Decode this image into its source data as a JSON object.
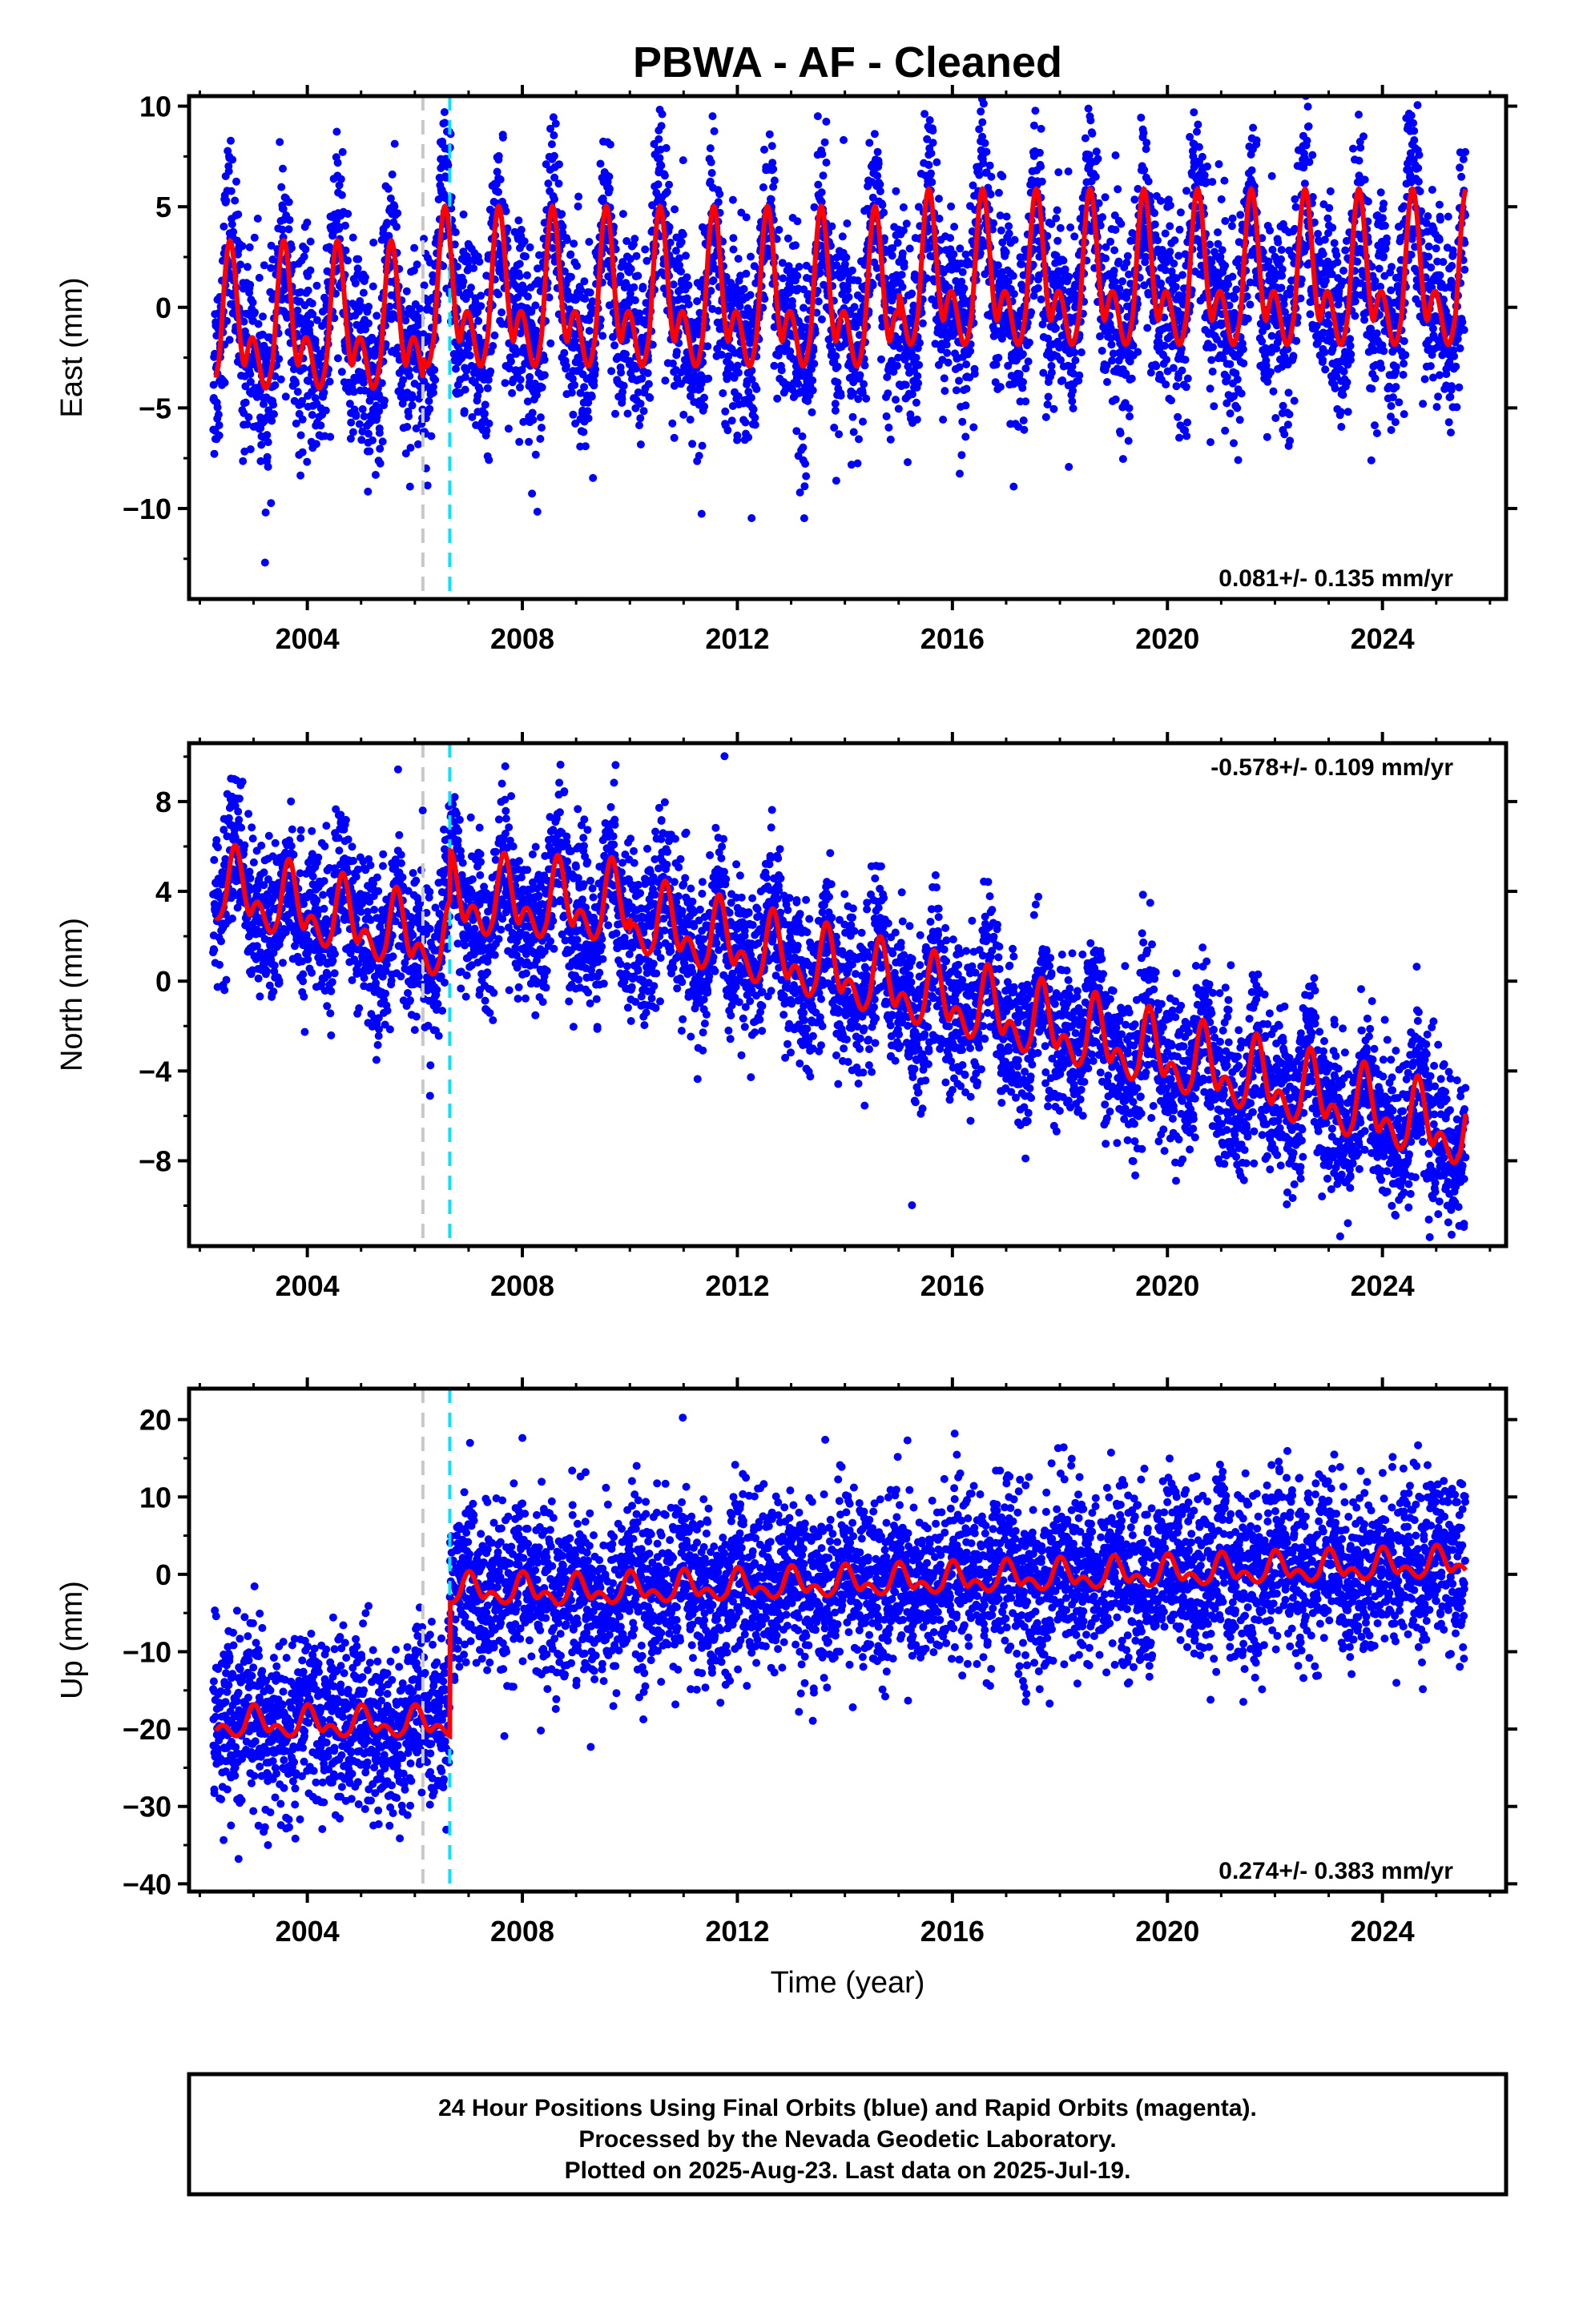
{
  "chart_data": {
    "type": "scatter",
    "title": "PBWA  - AF - Cleaned",
    "x_label": "Time (year)",
    "x_range": [
      2001.8,
      2026.3
    ],
    "x_ticks": [
      "2004",
      "2008",
      "2012",
      "2016",
      "2020",
      "2024"
    ],
    "x_tick_values": [
      2004,
      2008,
      2012,
      2016,
      2020,
      2024
    ],
    "vertical_markers": [
      {
        "x": 2006.15,
        "color": "#c8c8c8"
      },
      {
        "x": 2006.65,
        "color": "#00e5ff"
      }
    ],
    "series_colors": {
      "points": "#0000ff",
      "model": "#ff0000"
    },
    "panels": [
      {
        "id": "east",
        "ylabel": "East (mm)",
        "ylim": [
          -14.5,
          10.5
        ],
        "y_ticks": [
          "10",
          "5",
          "0",
          "−5",
          "−10"
        ],
        "y_tick_values": [
          10,
          5,
          0,
          -5,
          -10
        ],
        "rate_label": "0.081+/- 0.135 mm/yr",
        "rate_position": "bottom-right",
        "model": {
          "segments": [
            {
              "x0": 2002.3,
              "x1": 2006.15,
              "offset": -1.5,
              "trend": 0.0,
              "amp": 3.6,
              "phase": 0.35
            },
            {
              "x0": 2006.15,
              "x1": 2015.0,
              "offset": -0.2,
              "trend": 0.0,
              "amp": 3.9,
              "phase": 0.35
            },
            {
              "x0": 2015.0,
              "x1": 2025.55,
              "offset": 0.8,
              "trend": 0.0,
              "amp": 3.8,
              "phase": 0.35
            }
          ]
        },
        "scatter": {
          "spread": 2.4,
          "extra_amp": 1.3
        }
      },
      {
        "id": "north",
        "ylabel": "North (mm)",
        "ylim": [
          -11.8,
          10.6
        ],
        "y_ticks": [
          "8",
          "4",
          "0",
          "−4",
          "−8"
        ],
        "y_tick_values": [
          8,
          4,
          0,
          -4,
          -8
        ],
        "rate_label": "-0.578+/- 0.109 mm/yr",
        "rate_position": "top-right",
        "model": {
          "segments": [
            {
              "x0": 2002.3,
              "x1": 2006.65,
              "offset": 4.0,
              "trend": -0.62,
              "amp": 1.7,
              "phase": 0.45
            },
            {
              "x0": 2006.65,
              "x1": 2010.0,
              "offset": 3.4,
              "trend": -0.1,
              "amp": 1.8,
              "phase": 0.45
            },
            {
              "x0": 2010.0,
              "x1": 2025.55,
              "offset": 2.6,
              "trend": -0.62,
              "amp": 1.7,
              "phase": 0.45
            }
          ]
        },
        "scatter": {
          "spread": 1.7,
          "extra_amp": 0.8
        }
      },
      {
        "id": "up",
        "ylabel": "Up (mm)",
        "ylim": [
          -41,
          24
        ],
        "y_ticks": [
          "20",
          "10",
          "0",
          "−10",
          "−20",
          "−30",
          "−40"
        ],
        "y_tick_values": [
          20,
          10,
          0,
          -10,
          -20,
          -30,
          -40
        ],
        "rate_label": "0.274+/- 0.383 mm/yr",
        "rate_position": "bottom-right",
        "model": {
          "segments": [
            {
              "x0": 2002.3,
              "x1": 2006.65,
              "offset": -19.5,
              "trend": 0.0,
              "amp": 2.0,
              "phase": 0.8
            },
            {
              "x0": 2006.65,
              "x1": 2008.6,
              "offset": -2.3,
              "trend": 0.0,
              "amp": 2.0,
              "phase": 0.8
            },
            {
              "x0": 2008.6,
              "x1": 2025.55,
              "offset": -2.5,
              "trend": 0.22,
              "amp": 2.0,
              "phase": 0.8
            }
          ]
        },
        "scatter": {
          "spread": 5.5,
          "extra_amp": 2.0
        }
      }
    ]
  },
  "footer": {
    "line1": "24 Hour Positions Using Final Orbits (blue) and Rapid Orbits (magenta).",
    "line2": "Processed by the Nevada Geodetic Laboratory.",
    "line3": "Plotted on 2025-Aug-23. Last data on 2025-Jul-19."
  }
}
